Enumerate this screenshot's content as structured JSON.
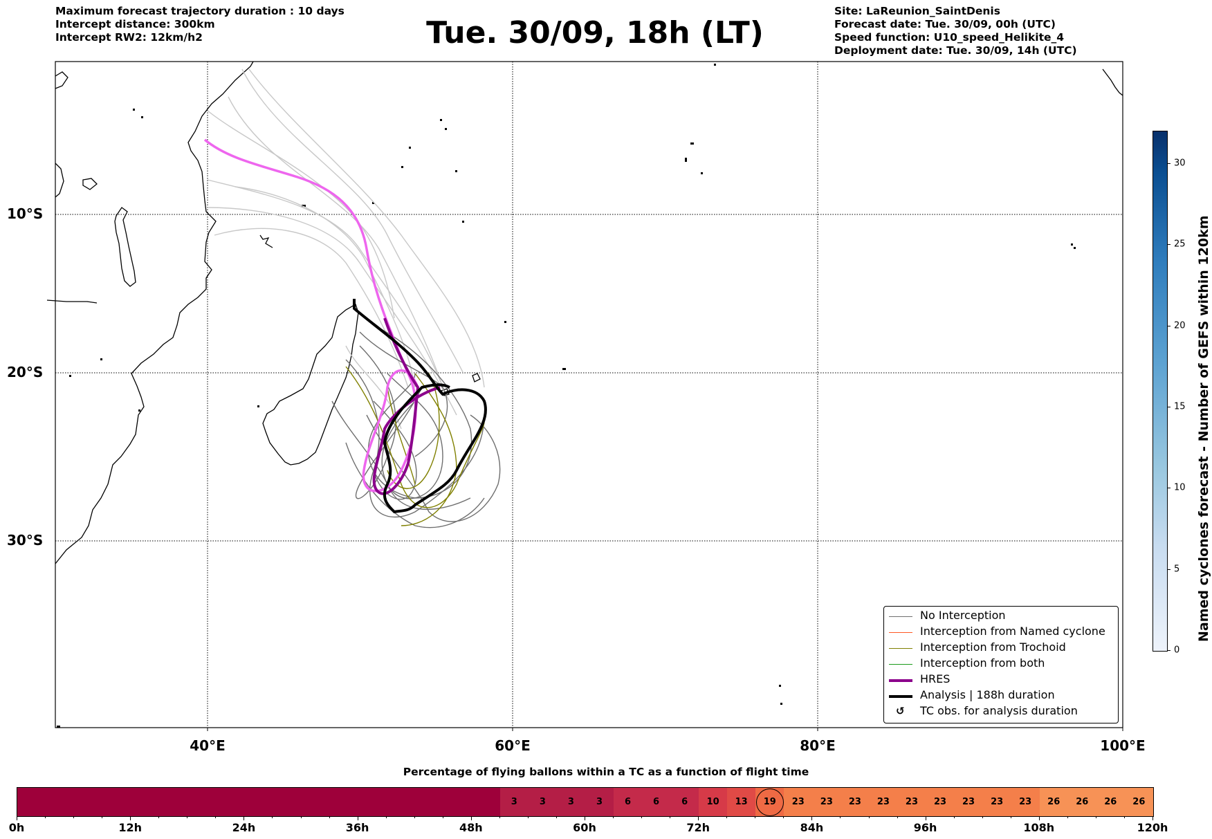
{
  "header": {
    "left_lines": [
      "Maximum forecast trajectory duration : 10 days",
      "Intercept distance: 300km",
      "Intercept RW2: 12km/h2"
    ],
    "title": "Tue. 30/09, 18h (LT)",
    "right_lines": [
      "Site: LaReunion_SaintDenis",
      "Forecast date: Tue. 30/09, 00h (UTC)",
      "Speed function: U10_speed_Helikite_4",
      "Deployment date: Tue. 30/09, 14h (UTC)"
    ]
  },
  "map": {
    "lon_range": [
      30,
      100
    ],
    "lat_range": [
      -42,
      0
    ],
    "lat_labels": [
      "10°S",
      "20°S",
      "30°S"
    ],
    "lon_labels": [
      "40°E",
      "60°E",
      "80°E",
      "100°E"
    ],
    "gridlines": "dotted"
  },
  "legend": {
    "items": [
      {
        "label": "No Interception",
        "color": "#6e6e6e",
        "style": "thin"
      },
      {
        "label": "Interception from Named cyclone",
        "color": "#ff5722",
        "style": "thin"
      },
      {
        "label": "Interception from Trochoid",
        "color": "#808000",
        "style": "thin"
      },
      {
        "label": "Interception from both",
        "color": "#1a9a1a",
        "style": "thin"
      },
      {
        "label": "HRES",
        "color": "#8b008b",
        "style": "thick"
      },
      {
        "label": "Analysis | 188h duration",
        "color": "#000000",
        "style": "thick"
      },
      {
        "label": "TC obs. for analysis duration",
        "glyph": "↺",
        "style": "glyph"
      }
    ]
  },
  "colorbar": {
    "title": "Named cyclones forecast - Number of GEFS within 120km",
    "ticks": [
      "0",
      "5",
      "10",
      "15",
      "20",
      "25",
      "30"
    ],
    "min": 0,
    "max": 32
  },
  "percent_bar": {
    "title": "Percentage of flying ballons within a TC as a function of flight time",
    "cells": [
      "",
      "",
      "",
      "",
      "",
      "",
      "",
      "",
      "",
      "",
      "",
      "",
      "",
      "",
      "",
      "",
      "",
      "3",
      "3",
      "3",
      "3",
      "6",
      "6",
      "6",
      "10",
      "13",
      "19",
      "23",
      "23",
      "23",
      "23",
      "23",
      "23",
      "23",
      "23",
      "23",
      "26",
      "26",
      "26",
      "26"
    ],
    "values": [
      0,
      0,
      0,
      0,
      0,
      0,
      0,
      0,
      0,
      0,
      0,
      0,
      0,
      0,
      0,
      0,
      0,
      3,
      3,
      3,
      3,
      6,
      6,
      6,
      10,
      13,
      19,
      23,
      23,
      23,
      23,
      23,
      23,
      23,
      23,
      23,
      26,
      26,
      26,
      26
    ],
    "circled_index": 26,
    "time_labels": [
      "0h",
      "12h",
      "24h",
      "36h",
      "48h",
      "60h",
      "72h",
      "84h",
      "96h",
      "108h",
      "120h"
    ]
  }
}
